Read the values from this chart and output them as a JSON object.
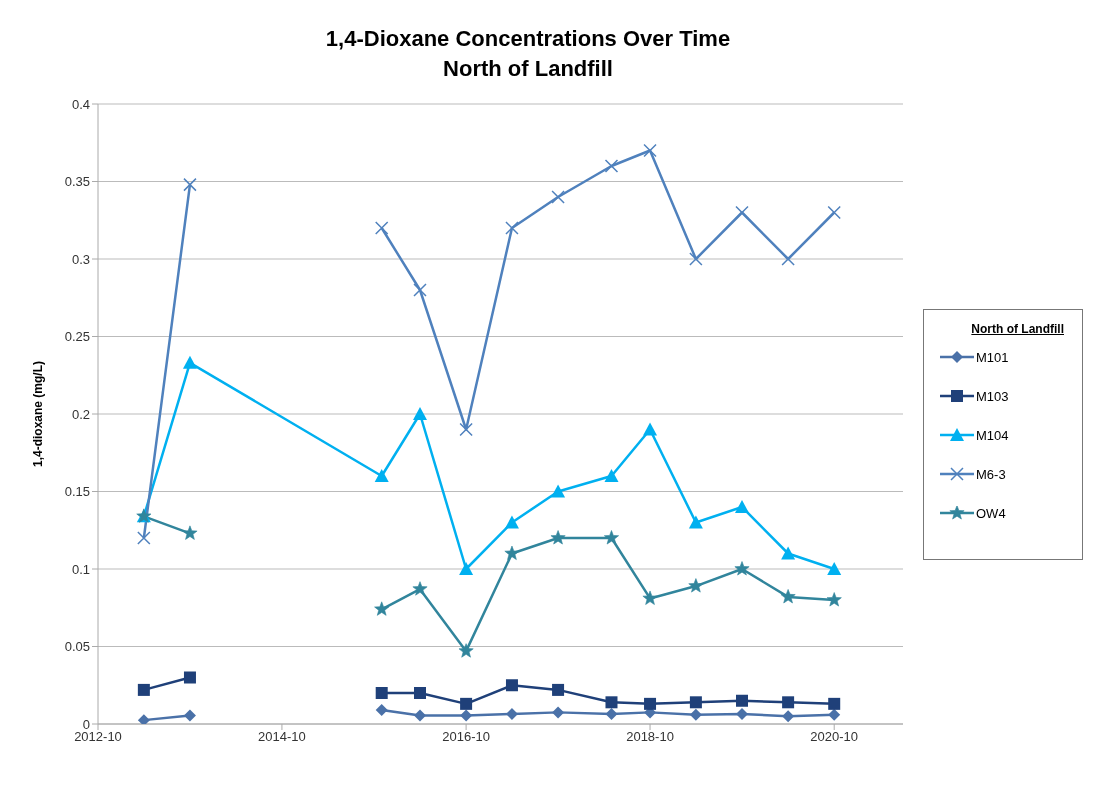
{
  "chart_data": {
    "type": "line",
    "title": "1,4-Dioxane Concentrations Over Time",
    "subtitle": "North of Landfill",
    "ylabel": "1,4-dioxane (mg/L)",
    "legend_title": "North of Landfill",
    "x": [
      "2013-04",
      "2013-10",
      "2015-11",
      "2016-04",
      "2016-10",
      "2017-04",
      "2017-10",
      "2018-05",
      "2018-10",
      "2019-04",
      "2019-10",
      "2020-04",
      "2020-10"
    ],
    "xlim": [
      "2012-10",
      "2021-07"
    ],
    "xticks": [
      "2012-10",
      "2014-10",
      "2016-10",
      "2018-10",
      "2020-10"
    ],
    "ylim": [
      0,
      0.4
    ],
    "yticks": [
      0,
      0.05,
      0.1,
      0.15,
      0.2,
      0.25,
      0.3,
      0.35,
      0.4
    ],
    "grid": "y",
    "legend": "right",
    "line_style": "solid",
    "series": [
      {
        "name": "M101",
        "color": "#4a71a8",
        "marker": "diamond",
        "x": [
          "2013-04",
          "2013-10",
          "2014-10",
          "2015-11",
          "2016-04",
          "2016-10",
          "2017-04",
          "2017-10",
          "2018-05",
          "2018-10",
          "2019-04",
          "2019-10",
          "2020-04",
          "2020-10"
        ],
        "values": [
          0.0025,
          0.0055,
          null,
          0.009,
          0.0055,
          0.0055,
          0.0065,
          0.0075,
          0.0065,
          0.0075,
          0.006,
          0.0065,
          0.005,
          0.006
        ]
      },
      {
        "name": "M103",
        "color": "#1f4079",
        "marker": "square",
        "x": [
          "2013-04",
          "2013-10",
          "2014-10",
          "2015-11",
          "2016-04",
          "2016-10",
          "2017-04",
          "2017-10",
          "2018-05",
          "2018-10",
          "2019-04",
          "2019-10",
          "2020-04",
          "2020-10"
        ],
        "values": [
          0.022,
          0.03,
          null,
          0.02,
          0.02,
          0.013,
          0.025,
          0.022,
          0.014,
          0.013,
          0.014,
          0.015,
          0.014,
          0.013
        ]
      },
      {
        "name": "M104",
        "color": "#00b0f0",
        "marker": "triangle",
        "values": [
          0.134,
          0.233,
          0.16,
          0.2,
          0.1,
          0.13,
          0.15,
          0.16,
          0.19,
          0.13,
          0.14,
          0.11,
          0.1
        ]
      },
      {
        "name": "M6-3",
        "color": "#4f81bd",
        "marker": "cross",
        "x": [
          "2013-04",
          "2013-10",
          "2014-10",
          "2015-11",
          "2016-04",
          "2016-10",
          "2017-04",
          "2017-10",
          "2018-05",
          "2018-10",
          "2019-04",
          "2019-10",
          "2020-04",
          "2020-10"
        ],
        "values": [
          0.12,
          0.348,
          null,
          0.32,
          0.28,
          0.19,
          0.32,
          0.34,
          0.36,
          0.37,
          0.3,
          0.33,
          0.3,
          0.33
        ]
      },
      {
        "name": "OW4",
        "color": "#31859c",
        "marker": "star",
        "x": [
          "2013-04",
          "2013-10",
          "2014-10",
          "2015-11",
          "2016-04",
          "2016-10",
          "2017-04",
          "2017-10",
          "2018-05",
          "2018-10",
          "2019-04",
          "2019-10",
          "2020-04",
          "2020-10"
        ],
        "values": [
          0.134,
          0.123,
          null,
          0.074,
          0.087,
          0.047,
          0.11,
          0.12,
          0.12,
          0.081,
          0.089,
          0.1,
          0.082,
          0.08
        ]
      }
    ]
  }
}
